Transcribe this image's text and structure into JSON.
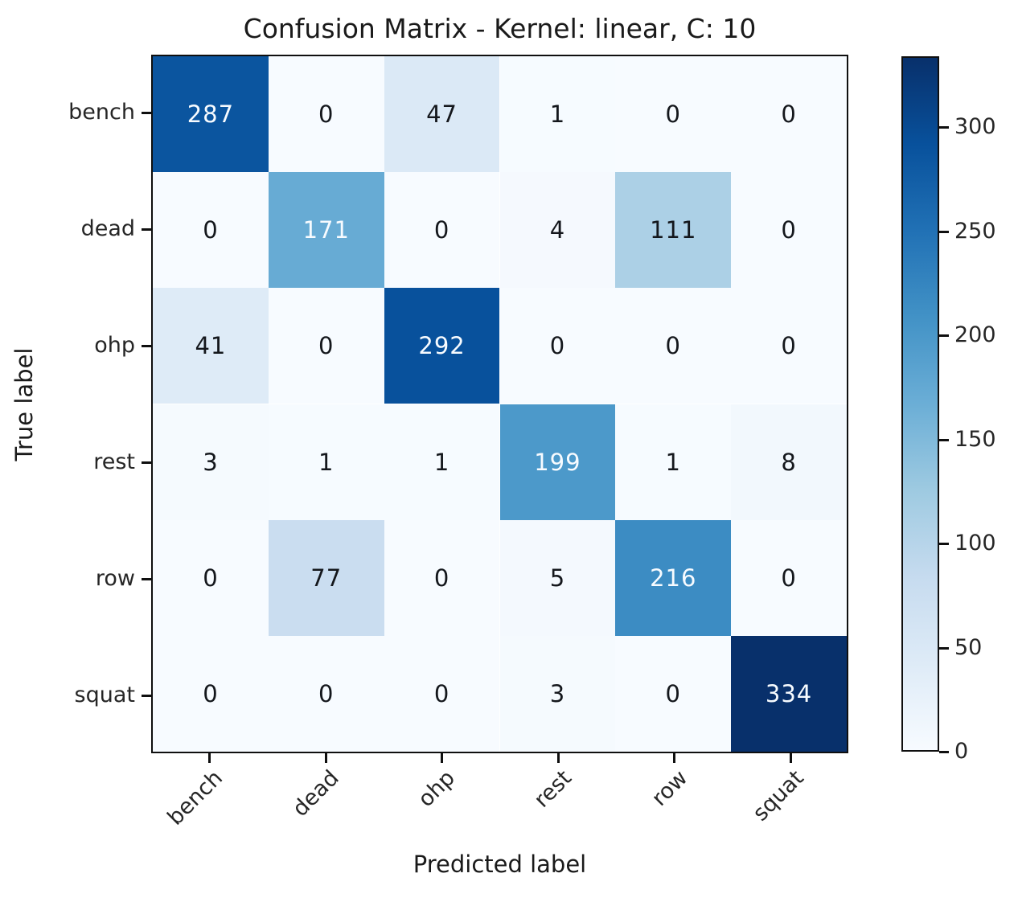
{
  "chart_data": {
    "type": "heatmap",
    "title": "Confusion Matrix - Kernel: linear, C: 10",
    "xlabel": "Predicted label",
    "ylabel": "True label",
    "categories": [
      "bench",
      "dead",
      "ohp",
      "rest",
      "row",
      "squat"
    ],
    "matrix": [
      [
        287,
        0,
        47,
        1,
        0,
        0
      ],
      [
        0,
        171,
        0,
        4,
        111,
        0
      ],
      [
        41,
        0,
        292,
        0,
        0,
        0
      ],
      [
        3,
        1,
        1,
        199,
        1,
        8
      ],
      [
        0,
        77,
        0,
        5,
        216,
        0
      ],
      [
        0,
        0,
        0,
        3,
        0,
        334
      ]
    ],
    "vmin": 0,
    "vmax": 334,
    "text_threshold": 167,
    "colormap": "Blues",
    "colorbar_ticks": [
      0,
      50,
      100,
      150,
      200,
      250,
      300
    ],
    "legend_position": "right-colorbar",
    "grid": false
  },
  "colors": {
    "blues_stops": [
      "#f7fbff",
      "#deebf7",
      "#c6dbef",
      "#9ecae1",
      "#6baed6",
      "#4292c6",
      "#2171b5",
      "#08519c",
      "#08306b"
    ],
    "cell_text_light": "#f7fbff",
    "cell_text_dark": "#14171c",
    "spine": "#0f0f0f",
    "background": "#ffffff"
  }
}
